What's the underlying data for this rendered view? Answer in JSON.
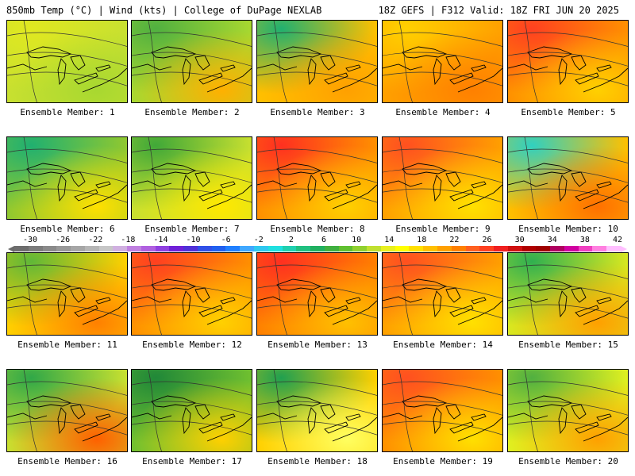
{
  "header": {
    "title_left": "850mb Temp (°C) | Wind (kts) | College of DuPage NEXLAB",
    "title_right": "18Z GEFS | F312 Valid: 18Z FRI JUN 20 2025"
  },
  "colorbar": {
    "labels": [
      "-30",
      "-26",
      "-22",
      "-18",
      "-14",
      "-10",
      "-6",
      "-2",
      "2",
      "6",
      "10",
      "14",
      "18",
      "22",
      "26",
      "30",
      "34",
      "38",
      "42"
    ],
    "colors": [
      "#6e6e6e",
      "#7c7c7c",
      "#8a8a8a",
      "#989898",
      "#a6a6a6",
      "#b6b6b6",
      "#c7c7c7",
      "#d0b0e0",
      "#c080e0",
      "#b060e0",
      "#9040e0",
      "#7020d8",
      "#5030d8",
      "#3050e8",
      "#2060f0",
      "#2080ff",
      "#40a8ff",
      "#30c8f0",
      "#20e0e0",
      "#20d0b0",
      "#20c080",
      "#20b060",
      "#40b040",
      "#60c030",
      "#90d030",
      "#c0e030",
      "#e8f020",
      "#ffff00",
      "#ffe000",
      "#ffc000",
      "#ffa000",
      "#ff8000",
      "#ff6020",
      "#ff4020",
      "#f02020",
      "#d01010",
      "#b00000",
      "#a00000",
      "#b00060",
      "#d000a0",
      "#f040c0",
      "#ff80e0",
      "#ffbfff"
    ]
  },
  "panels": [
    {
      "label": "Ensemble Member: 1",
      "base": "#c8e030",
      "a": "#e0e820",
      "b": "#a8d830"
    },
    {
      "label": "Ensemble Member: 2",
      "base": "#a8d830",
      "a": "#50b040",
      "b": "#ffb000"
    },
    {
      "label": "Ensemble Member: 3",
      "base": "#ffc000",
      "a": "#20b070",
      "b": "#ffa000"
    },
    {
      "label": "Ensemble Member: 4",
      "base": "#ffa000",
      "a": "#ffd000",
      "b": "#ff8000"
    },
    {
      "label": "Ensemble Member: 5",
      "base": "#ff9000",
      "a": "#ff4020",
      "b": "#ffd000"
    },
    {
      "label": "Ensemble Member: 6",
      "base": "#90c830",
      "a": "#20b070",
      "b": "#ffe000"
    },
    {
      "label": "Ensemble Member: 7",
      "base": "#c8e030",
      "a": "#40a838",
      "b": "#ffe800"
    },
    {
      "label": "Ensemble Member: 8",
      "base": "#ff9000",
      "a": "#ff3020",
      "b": "#ffd000"
    },
    {
      "label": "Ensemble Member: 9",
      "base": "#ffa000",
      "a": "#ff5020",
      "b": "#ffe000"
    },
    {
      "label": "Ensemble Member: 10",
      "base": "#ffc000",
      "a": "#30d0c0",
      "b": "#ff7000"
    },
    {
      "label": "Ensemble Member: 11",
      "base": "#ffd000",
      "a": "#60b838",
      "b": "#ff8000"
    },
    {
      "label": "Ensemble Member: 12",
      "base": "#ff9000",
      "a": "#ff4020",
      "b": "#ffd000"
    },
    {
      "label": "Ensemble Member: 13",
      "base": "#ff8000",
      "a": "#ff3020",
      "b": "#ffc000"
    },
    {
      "label": "Ensemble Member: 14",
      "base": "#ffa000",
      "a": "#ff5020",
      "b": "#ffe000"
    },
    {
      "label": "Ensemble Member: 15",
      "base": "#d8e820",
      "a": "#30b050",
      "b": "#ffa000"
    },
    {
      "label": "Ensemble Member: 16",
      "base": "#c8e030",
      "a": "#30a848",
      "b": "#ff6000"
    },
    {
      "label": "Ensemble Member: 17",
      "base": "#70c030",
      "a": "#208838",
      "b": "#ffd000"
    },
    {
      "label": "Ensemble Member: 18",
      "base": "#ffd000",
      "a": "#20a050",
      "b": "#ffff60"
    },
    {
      "label": "Ensemble Member: 19",
      "base": "#ff9000",
      "a": "#ff5020",
      "b": "#ffe000"
    },
    {
      "label": "Ensemble Member: 20",
      "base": "#e0f020",
      "a": "#50b040",
      "b": "#ffa000"
    }
  ]
}
